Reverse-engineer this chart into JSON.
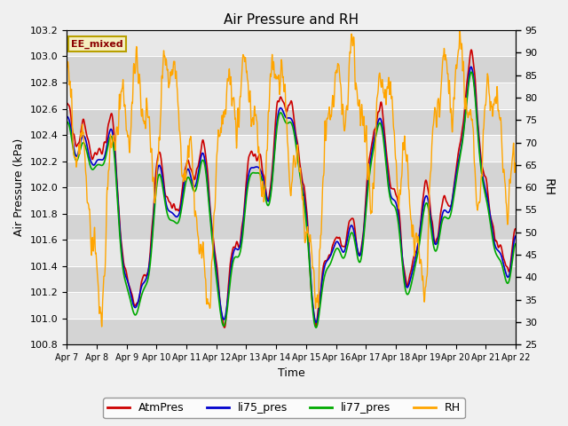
{
  "title": "Air Pressure and RH",
  "xlabel": "Time",
  "ylabel_left": "Air Pressure (kPa)",
  "ylabel_right": "RH",
  "ylim_left": [
    100.8,
    103.2
  ],
  "ylim_right": [
    25,
    95
  ],
  "yticks_left": [
    100.8,
    101.0,
    101.2,
    101.4,
    101.6,
    101.8,
    102.0,
    102.2,
    102.4,
    102.6,
    102.8,
    103.0,
    103.2
  ],
  "yticks_right": [
    25,
    30,
    35,
    40,
    45,
    50,
    55,
    60,
    65,
    70,
    75,
    80,
    85,
    90,
    95
  ],
  "xtick_labels": [
    "Apr 7",
    "Apr 8",
    "Apr 9",
    "Apr 10",
    "Apr 11",
    "Apr 12",
    "Apr 13",
    "Apr 14",
    "Apr 15",
    "Apr 16",
    "Apr 17",
    "Apr 18",
    "Apr 19",
    "Apr 20",
    "Apr 21",
    "Apr 22"
  ],
  "annotation_text": "EE_mixed",
  "legend_labels": [
    "AtmPres",
    "li75_pres",
    "li77_pres",
    "RH"
  ],
  "colors": [
    "#cc0000",
    "#0000cc",
    "#00aa00",
    "#ffa500"
  ],
  "figsize": [
    6.4,
    4.8
  ],
  "dpi": 100
}
